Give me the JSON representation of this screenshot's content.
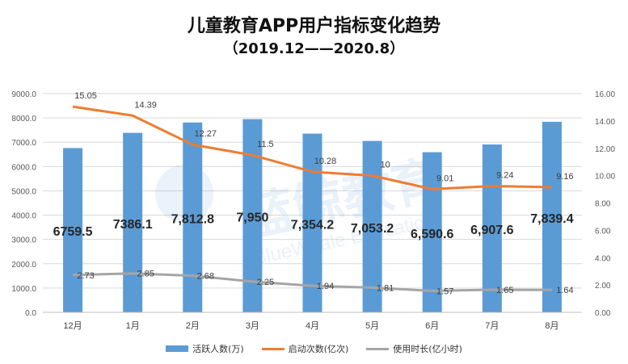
{
  "chart_data": {
    "type": "bar",
    "title": "儿童教育APP用户指标变化趋势",
    "subtitle": "（2019.12——2020.8）",
    "categories": [
      "12月",
      "1月",
      "2月",
      "3月",
      "4月",
      "5月",
      "6月",
      "7月",
      "8月"
    ],
    "series": [
      {
        "name": "活跃人数(万)",
        "type": "bar",
        "axis": "left",
        "color": "#5b9bd5",
        "values": [
          6759.5,
          7386.1,
          7812.8,
          7950,
          7354.2,
          7053.2,
          6590.6,
          6907.6,
          7839.4
        ],
        "labels": [
          "6759.5",
          "7386.1",
          "7,812.8",
          "7,950",
          "7,354.2",
          "7,053.2",
          "6,590.6",
          "6,907.6",
          "7,839.4"
        ]
      },
      {
        "name": "启动次数(亿次)",
        "type": "line",
        "axis": "right",
        "color": "#ed7d31",
        "values": [
          15.05,
          14.39,
          12.27,
          11.5,
          10.28,
          10,
          9.01,
          9.24,
          9.16
        ],
        "labels": [
          "15.05",
          "14.39",
          "12.27",
          "11.5",
          "10.28",
          "10",
          "9.01",
          "9.24",
          "9.16"
        ]
      },
      {
        "name": "使用时长(亿小时)",
        "type": "line",
        "axis": "right",
        "color": "#a5a5a5",
        "values": [
          2.73,
          2.85,
          2.68,
          2.25,
          1.94,
          1.81,
          1.57,
          1.65,
          1.64
        ],
        "labels": [
          "2.73",
          "2.85",
          "2.68",
          "2.25",
          "1.94",
          "1.81",
          "1.57",
          "1.65",
          "1.64"
        ]
      }
    ],
    "y_left": {
      "lim": [
        0,
        9000
      ],
      "ticks": [
        0,
        1000,
        2000,
        3000,
        4000,
        5000,
        6000,
        7000,
        8000,
        9000
      ],
      "tick_labels": [
        "0.0",
        "1000.0",
        "2000.0",
        "3000.0",
        "4000.0",
        "5000.0",
        "6000.0",
        "7000.0",
        "8000.0",
        "9000.0"
      ]
    },
    "y_right": {
      "lim": [
        0,
        16
      ],
      "ticks": [
        0,
        2,
        4,
        6,
        8,
        10,
        12,
        14,
        16
      ],
      "tick_labels": [
        "0.00",
        "2.00",
        "4.00",
        "6.00",
        "8.00",
        "10.00",
        "12.00",
        "14.00",
        "16.00"
      ]
    },
    "grid": true,
    "legend_position": "bottom",
    "watermark": {
      "text": "蓝鲸教育",
      "subtext": "BlueWhale Education",
      "color": "#5b9bd5"
    }
  }
}
